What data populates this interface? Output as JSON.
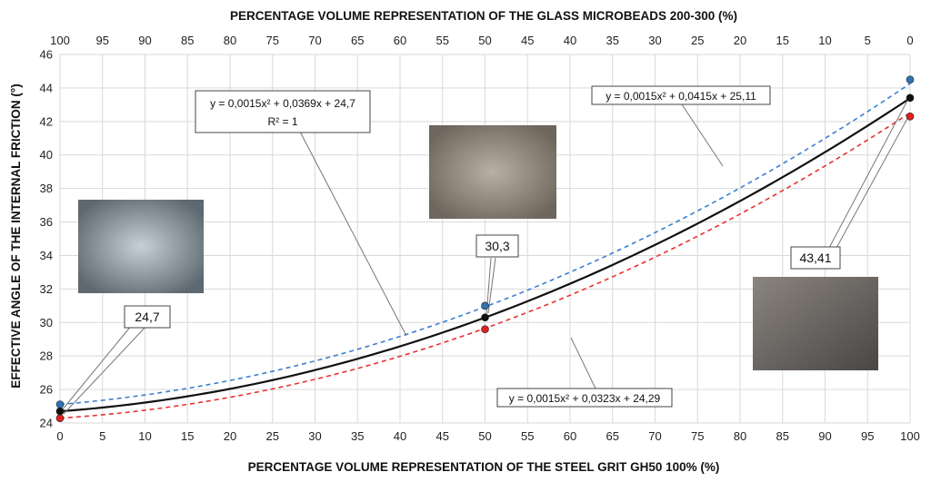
{
  "chart_data": {
    "type": "line",
    "title": "",
    "x_top_label": "PERCENTAGE VOLUME REPRESENTATION OF THE GLASS MICROBEADS 200-300  (%)",
    "xlabel": "PERCENTAGE VOLUME REPRESENTATION OF THE STEEL GRIT GH50 100% (%)",
    "ylabel": "EFFECTIVE ANGLE OF THE INTERNAL FRICTION  (°)",
    "xlim": [
      0,
      100
    ],
    "ylim": [
      24,
      46
    ],
    "x_ticks": [
      0,
      5,
      10,
      15,
      20,
      25,
      30,
      35,
      40,
      45,
      50,
      55,
      60,
      65,
      70,
      75,
      80,
      85,
      90,
      95,
      100
    ],
    "x_top_ticks": [
      100,
      95,
      90,
      85,
      80,
      75,
      70,
      65,
      60,
      55,
      50,
      45,
      40,
      35,
      30,
      25,
      20,
      15,
      10,
      5,
      0
    ],
    "y_ticks": [
      24,
      26,
      28,
      30,
      32,
      34,
      36,
      38,
      40,
      42,
      44,
      46
    ],
    "grid": true,
    "colors": {
      "mean": "#111111",
      "upper": "#3a7fd0",
      "lower": "#e8312f",
      "upper_point": "#2e74b5",
      "lower_point": "#e02020",
      "grid": "#d9d9d9"
    },
    "series": [
      {
        "style": "solid",
        "equation": "y = 0,0015x² + 0,0369x + 24,7",
        "r2": "R² = 1",
        "coeffs": [
          0.0015,
          0.0369,
          24.7
        ],
        "points": [
          [
            0,
            24.7
          ],
          [
            50,
            30.3
          ],
          [
            100,
            43.41
          ]
        ]
      },
      {
        "style": "dashed",
        "equation": "y = 0,0015x² + 0,0415x + 25,11",
        "coeffs": [
          0.0015,
          0.0415,
          25.11
        ],
        "points": [
          [
            0,
            25.11
          ],
          [
            50,
            31.0
          ],
          [
            100,
            44.5
          ]
        ]
      },
      {
        "style": "dashed",
        "equation": "y = 0,0015x² + 0,0323x + 24,29",
        "coeffs": [
          0.0015,
          0.0323,
          24.29
        ],
        "points": [
          [
            0,
            24.29
          ],
          [
            50,
            29.6
          ],
          [
            100,
            42.3
          ]
        ]
      }
    ],
    "annotations": [
      "24,7",
      "30,3",
      "43,41"
    ]
  }
}
